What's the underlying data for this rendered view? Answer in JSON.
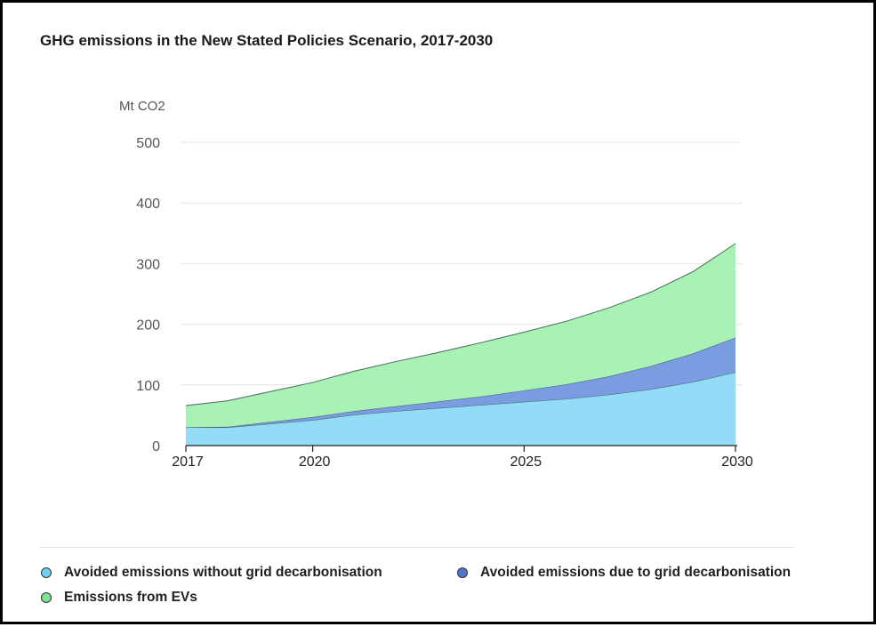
{
  "chart_data": {
    "type": "area",
    "stacked": true,
    "title": "GHG emissions in the New Stated Policies Scenario, 2017-2030",
    "ylabel": "Mt CO2",
    "xlabel": "",
    "ylim": [
      0,
      500
    ],
    "xlim": [
      2017,
      2030
    ],
    "yticks": [
      0,
      100,
      200,
      300,
      400,
      500
    ],
    "xticks": [
      2017,
      2020,
      2025,
      2030
    ],
    "grid": true,
    "legend_position": "bottom",
    "x": [
      2017,
      2018,
      2019,
      2020,
      2021,
      2022,
      2023,
      2024,
      2025,
      2026,
      2027,
      2028,
      2029,
      2030
    ],
    "series": [
      {
        "name": "Avoided emissions without grid decarbonisation",
        "color": "#92dcf8",
        "values": [
          30,
          30,
          36,
          42,
          51,
          57,
          62,
          67,
          72,
          77,
          84,
          93,
          105,
          121
        ]
      },
      {
        "name": "Avoided emissions due to grid decarbonisation",
        "color": "#7a9ce0",
        "values": [
          0,
          1,
          3,
          5,
          6,
          8,
          11,
          14,
          19,
          24,
          30,
          38,
          47,
          57
        ]
      },
      {
        "name": "Emissions from EVs",
        "color": "#a7f2b4",
        "values": [
          36,
          43,
          50,
          57,
          66,
          74,
          81,
          89,
          96,
          104,
          113,
          122,
          135,
          155
        ]
      }
    ]
  }
}
